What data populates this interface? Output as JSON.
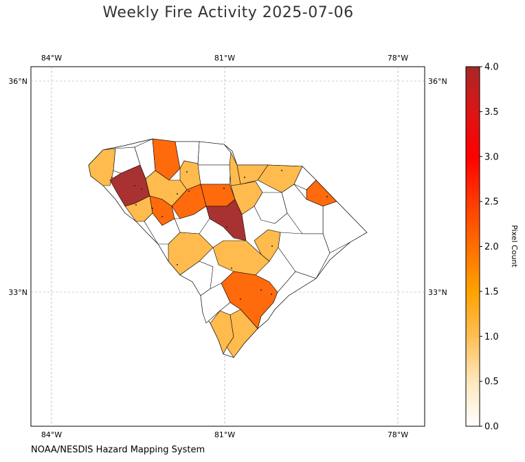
{
  "title": "Weekly Fire Activity 2025-07-06",
  "credit": "NOAA/NESDIS Hazard Mapping System",
  "map": {
    "lon_labels": [
      "84°W",
      "81°W",
      "78°W"
    ],
    "lat_labels": [
      "36°N",
      "33°N"
    ],
    "lon_range": [
      -84.35,
      -77.55
    ],
    "lat_range": [
      31.1,
      36.2
    ]
  },
  "colorbar": {
    "label": "Pixel Count",
    "ticks": [
      "0.0",
      "0.5",
      "1.0",
      "1.5",
      "2.0",
      "2.5",
      "3.0",
      "3.5",
      "4.0"
    ],
    "min": 0,
    "max": 4,
    "colors": [
      "#ffffff",
      "#ffe0a0",
      "#ffb84d",
      "#ffa000",
      "#ff6f00",
      "#ff3000",
      "#ff0000",
      "#e01010",
      "#aa2a2a"
    ]
  },
  "legend_values": {
    "fill_1": "#ffbb4d",
    "fill_2": "#ff6a0d",
    "fill_4": "#a83232"
  }
}
